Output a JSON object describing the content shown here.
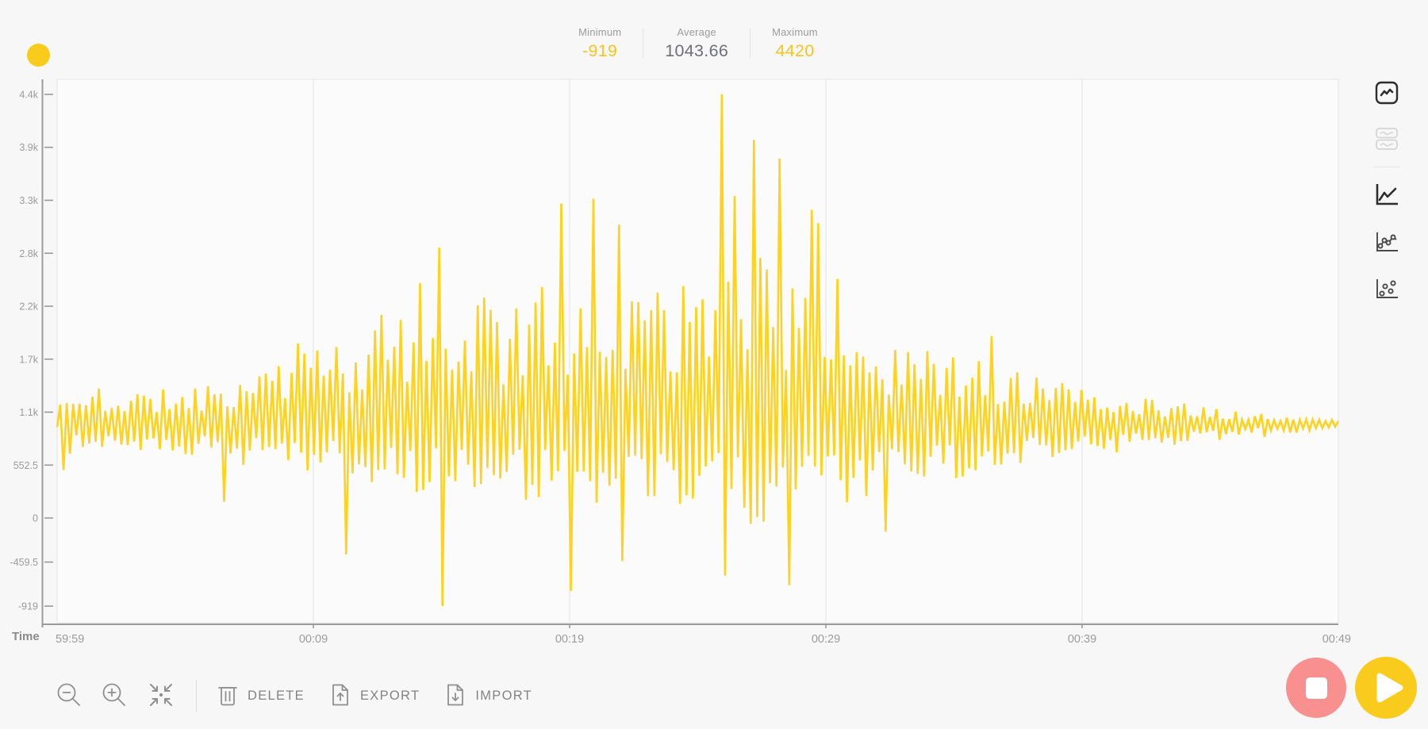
{
  "theme": {
    "bg": "#F7F7F7",
    "accent_yellow": "#F9CB1D",
    "stat_accent": "#F9C41F",
    "stat_gray": "#6E7073",
    "label_gray": "#9B9B9B",
    "icon_gray": "#8F8F8F",
    "icon_disabled": "#D5D5D5",
    "icon_black": "#2D2D2D",
    "stop_pink": "#F7908F"
  },
  "header": {
    "stats": [
      {
        "label": "Minimum",
        "value": "-919"
      },
      {
        "label": "Average",
        "value": "1043.66"
      },
      {
        "label": "Maximum",
        "value": "4420"
      }
    ]
  },
  "chart_data": {
    "type": "line",
    "title": "",
    "xlabel": "Time",
    "ylabel": "",
    "legend": "none",
    "grid": "vertical-only",
    "stats": {
      "minimum": -919,
      "average": 1043.66,
      "maximum": 4420
    },
    "x_ticks": [
      {
        "t": 0.0,
        "label": "59:59",
        "anchor": "start"
      },
      {
        "t": 0.2,
        "label": "00:09",
        "anchor": "middle"
      },
      {
        "t": 0.4,
        "label": "00:19",
        "anchor": "middle"
      },
      {
        "t": 0.6,
        "label": "00:29",
        "anchor": "middle"
      },
      {
        "t": 0.8,
        "label": "00:39",
        "anchor": "middle"
      },
      {
        "t": 1.0,
        "label": "00:49",
        "anchor": "end"
      }
    ],
    "x_gridlines": [
      0.2,
      0.4,
      0.6,
      0.8
    ],
    "y_ticks": [
      {
        "v": 4420,
        "label": "4.4k"
      },
      {
        "v": 3867.5,
        "label": "3.9k"
      },
      {
        "v": 3315,
        "label": "3.3k"
      },
      {
        "v": 2762.5,
        "label": "2.8k"
      },
      {
        "v": 2210,
        "label": "2.2k"
      },
      {
        "v": 1657.5,
        "label": "1.7k"
      },
      {
        "v": 1105,
        "label": "1.1k"
      },
      {
        "v": 552.5,
        "label": "552.5"
      },
      {
        "v": 0,
        "label": "0"
      },
      {
        "v": -459.5,
        "label": "-459.5"
      },
      {
        "v": -919,
        "label": "-919"
      }
    ],
    "axis": {
      "v_top": 4577,
      "v_bottom": -1092
    },
    "colors": {
      "wave": "#FFD21E",
      "grid": "#E9E9E9",
      "plot_bg": "#FBFBFB",
      "plot_border": "#EAEAEA",
      "spine": "#9A9A9A",
      "tick_text": "#9B9B9B"
    },
    "waveform": {
      "baseline": 985,
      "seed": 11,
      "n_points": 400,
      "envelope": [
        {
          "t": 0.0,
          "hi": 1280,
          "lo": 620
        },
        {
          "t": 0.04,
          "hi": 1310,
          "lo": 680
        },
        {
          "t": 0.08,
          "hi": 1340,
          "lo": 660
        },
        {
          "t": 0.12,
          "hi": 1430,
          "lo": 600
        },
        {
          "t": 0.16,
          "hi": 1600,
          "lo": 520
        },
        {
          "t": 0.2,
          "hi": 1780,
          "lo": 430
        },
        {
          "t": 0.24,
          "hi": 1950,
          "lo": 330
        },
        {
          "t": 0.28,
          "hi": 2120,
          "lo": 260
        },
        {
          "t": 0.32,
          "hi": 2250,
          "lo": 230
        },
        {
          "t": 0.36,
          "hi": 2380,
          "lo": 200
        },
        {
          "t": 0.4,
          "hi": 2480,
          "lo": 130
        },
        {
          "t": 0.44,
          "hi": 2450,
          "lo": 160
        },
        {
          "t": 0.48,
          "hi": 2420,
          "lo": 90
        },
        {
          "t": 0.52,
          "hi": 2620,
          "lo": -30
        },
        {
          "t": 0.56,
          "hi": 2600,
          "lo": -110
        },
        {
          "t": 0.6,
          "hi": 2200,
          "lo": 120
        },
        {
          "t": 0.64,
          "hi": 2000,
          "lo": 220
        },
        {
          "t": 0.68,
          "hi": 1780,
          "lo": 330
        },
        {
          "t": 0.72,
          "hi": 1650,
          "lo": 420
        },
        {
          "t": 0.76,
          "hi": 1500,
          "lo": 500
        },
        {
          "t": 0.8,
          "hi": 1360,
          "lo": 620
        },
        {
          "t": 0.84,
          "hi": 1280,
          "lo": 680
        },
        {
          "t": 0.88,
          "hi": 1200,
          "lo": 740
        },
        {
          "t": 0.92,
          "hi": 1130,
          "lo": 800
        },
        {
          "t": 0.96,
          "hi": 1060,
          "lo": 870
        },
        {
          "t": 1.0,
          "hi": 1020,
          "lo": 930
        }
      ],
      "features": [
        {
          "t": 0.0,
          "v": 950
        },
        {
          "t": 0.004,
          "v": 500
        },
        {
          "t": 0.035,
          "v": 1350
        },
        {
          "t": 0.128,
          "v": 170
        },
        {
          "t": 0.19,
          "v": 1820
        },
        {
          "t": 0.225,
          "v": -380
        },
        {
          "t": 0.252,
          "v": 2120
        },
        {
          "t": 0.283,
          "v": 2450
        },
        {
          "t": 0.2975,
          "v": 2820
        },
        {
          "t": 0.3025,
          "v": -919
        },
        {
          "t": 0.332,
          "v": 2300
        },
        {
          "t": 0.394,
          "v": 3280
        },
        {
          "t": 0.3995,
          "v": -760
        },
        {
          "t": 0.417,
          "v": 3330
        },
        {
          "t": 0.438,
          "v": 3060
        },
        {
          "t": 0.4425,
          "v": -450
        },
        {
          "t": 0.471,
          "v": 2350
        },
        {
          "t": 0.489,
          "v": 2420
        },
        {
          "t": 0.517,
          "v": 4420
        },
        {
          "t": 0.5215,
          "v": -600
        },
        {
          "t": 0.527,
          "v": 3360
        },
        {
          "t": 0.5425,
          "v": 3945
        },
        {
          "t": 0.5495,
          "v": 2715
        },
        {
          "t": 0.5645,
          "v": 3750
        },
        {
          "t": 0.5695,
          "v": -700
        },
        {
          "t": 0.588,
          "v": 3215
        },
        {
          "t": 0.5955,
          "v": 3075
        },
        {
          "t": 0.611,
          "v": 2495
        },
        {
          "t": 0.6475,
          "v": -140
        },
        {
          "t": 0.728,
          "v": 1900
        }
      ]
    }
  },
  "side_rail": {
    "view_modes": [
      {
        "name": "single-chart-view",
        "state": "active"
      },
      {
        "name": "split-chart-view",
        "state": "disabled"
      }
    ],
    "chart_types": [
      {
        "name": "line-chart",
        "state": "selected"
      },
      {
        "name": "line-points-chart",
        "state": "default"
      },
      {
        "name": "scatter-chart",
        "state": "default"
      }
    ]
  },
  "toolbar": {
    "delete_label": "DELETE",
    "export_label": "EXPORT",
    "import_label": "IMPORT"
  }
}
